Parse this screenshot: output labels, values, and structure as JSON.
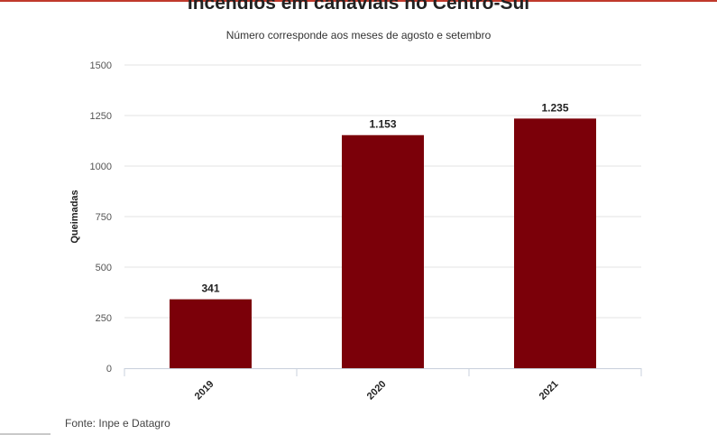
{
  "chart_data": {
    "type": "bar",
    "title": "Incêndios em canaviais no Centro-Sul",
    "subtitle": "Número corresponde aos meses de agosto e setembro",
    "xlabel": "",
    "ylabel": "Queimadas",
    "categories": [
      "2019",
      "2020",
      "2021"
    ],
    "values": [
      341,
      1153,
      1235
    ],
    "value_labels": [
      "341",
      "1.153",
      "1.235"
    ],
    "ylim": [
      0,
      1500
    ],
    "yticks": [
      0,
      250,
      500,
      750,
      1000,
      1250,
      1500
    ],
    "ytick_labels": [
      "0",
      "250",
      "500",
      "750",
      "1000",
      "1250",
      "1500"
    ],
    "bar_color": "#7b0009",
    "grid": true,
    "legend": "none"
  },
  "source": "Fonte: Inpe e Datagro",
  "colors": {
    "accent": "#c0392b"
  }
}
